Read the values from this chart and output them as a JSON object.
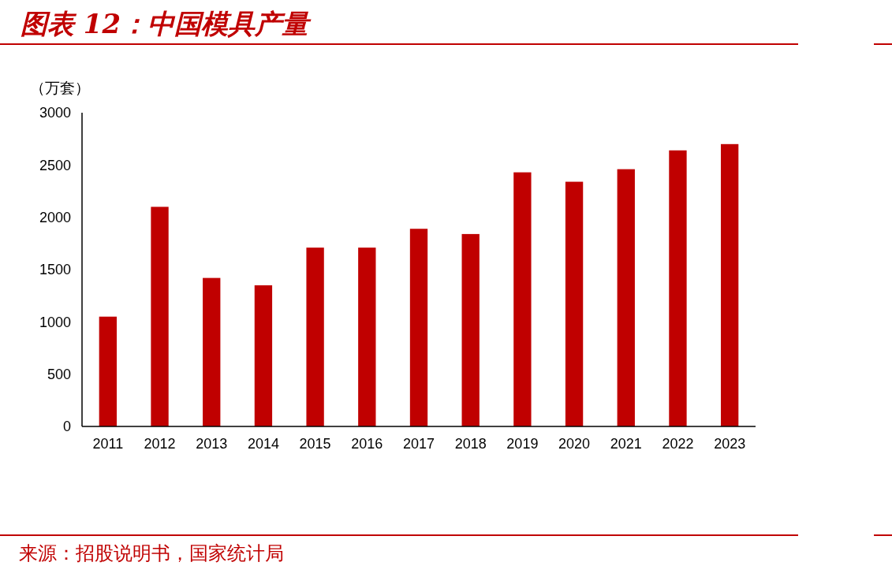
{
  "chart_data": {
    "type": "bar",
    "title": "图表 12：中国模具产量",
    "ylabel": "（万套）",
    "categories": [
      "2011",
      "2012",
      "2013",
      "2014",
      "2015",
      "2016",
      "2017",
      "2018",
      "2019",
      "2020",
      "2021",
      "2022",
      "2023"
    ],
    "values": [
      1050,
      2100,
      1420,
      1350,
      1710,
      1710,
      1890,
      1840,
      2430,
      2340,
      2460,
      2640,
      2700
    ],
    "color": "#c00000",
    "ylim": [
      0,
      3000
    ],
    "yticks": [
      0,
      500,
      1000,
      1500,
      2000,
      2500,
      3000
    ],
    "grid": false,
    "annotations": [
      "来源：招股说明书，国家统计局"
    ]
  }
}
